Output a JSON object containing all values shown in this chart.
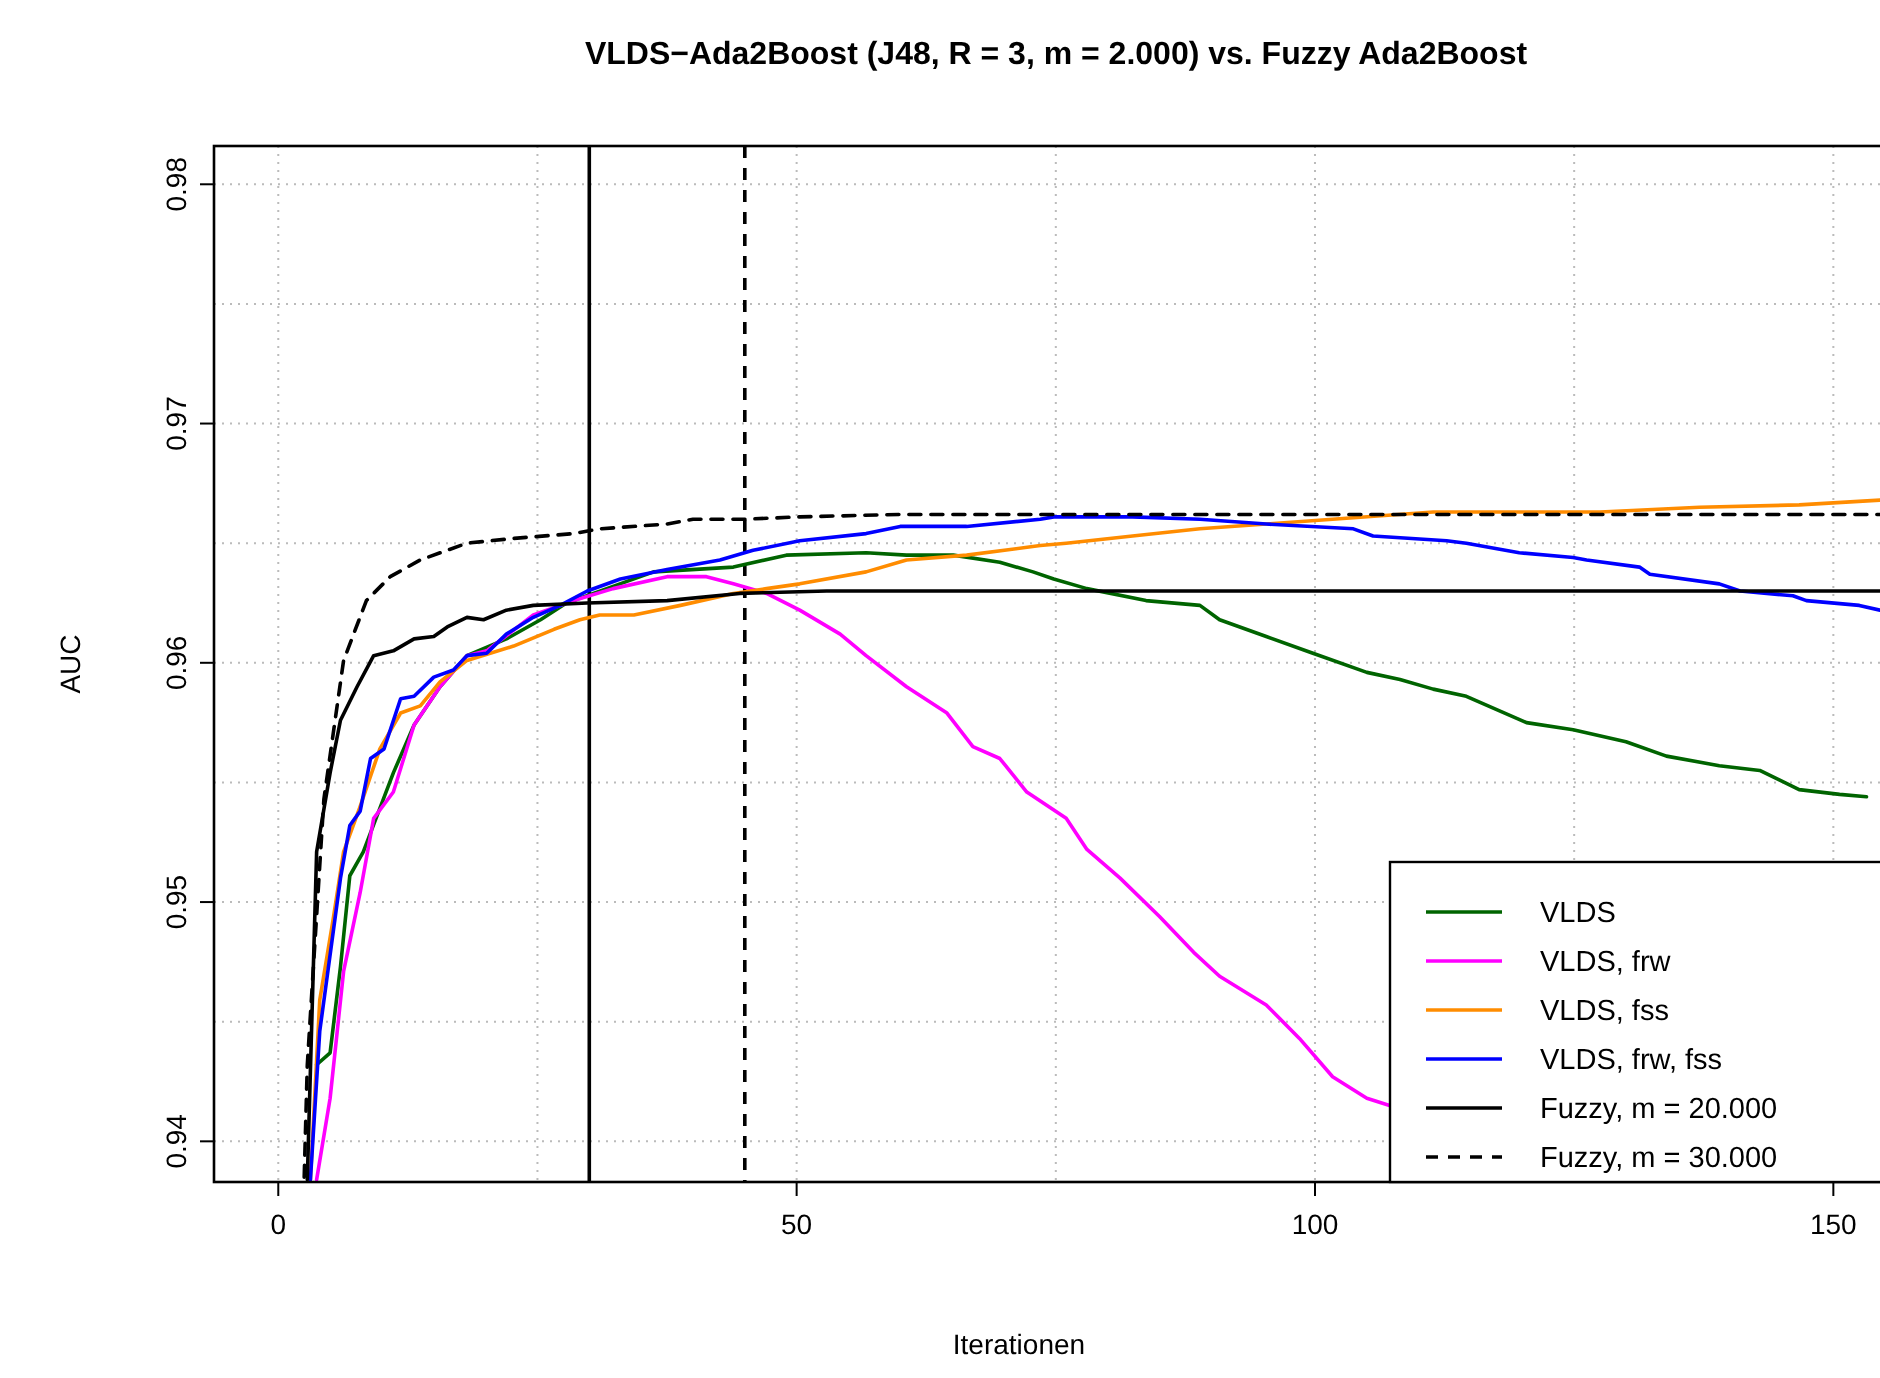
{
  "chart_data": {
    "type": "line",
    "title": "VLDS−Ada2Boost (J48, R = 3, m = 2.000) vs. Fuzzy Ada2Boost",
    "xlabel": "Iterationen",
    "ylabel": "AUC",
    "xlim": [
      -6.2,
      154.5
    ],
    "ylim": [
      0.9383,
      0.9816
    ],
    "xticks": [
      0,
      {
        "value": 25,
        "label": null
      },
      50,
      {
        "value": 75,
        "label": null
      },
      100,
      {
        "value": 125,
        "label": null
      },
      150
    ],
    "yticks": [
      {
        "value": 0.94,
        "label": "0.94"
      },
      {
        "value": 0.945,
        "label": null
      },
      {
        "value": 0.95,
        "label": "0.95"
      },
      {
        "value": 0.955,
        "label": null
      },
      {
        "value": 0.96,
        "label": "0.96"
      },
      {
        "value": 0.965,
        "label": null
      },
      {
        "value": 0.97,
        "label": "0.97"
      },
      {
        "value": 0.975,
        "label": null
      },
      {
        "value": 0.98,
        "label": "0.98"
      }
    ],
    "grid": true,
    "legend": "bottom right",
    "ref_lines": [
      {
        "axis": "x",
        "value": 30,
        "color": "#000000",
        "line_style": "solid"
      },
      {
        "axis": "x",
        "value": 45,
        "color": "#000000",
        "line_style": "dashed"
      }
    ],
    "series": [
      {
        "name": "VLDS",
        "color": "#006400",
        "line_style": "solid",
        "x": [
          3.7,
          5.0,
          6.0,
          6.9,
          8.2,
          11.1,
          13.1,
          15.6,
          18.2,
          22.0,
          25.3,
          27.8,
          30.4,
          36.2,
          43.9,
          49.0,
          56.7,
          60.6,
          65.1,
          69.6,
          72.8,
          74.8,
          78.0,
          83.7,
          88.9,
          90.8,
          95.3,
          99.8,
          105.0,
          108.2,
          111.4,
          114.6,
          120.4,
          124.9,
          130.0,
          133.9,
          139.0,
          142.9,
          146.7,
          150.6,
          153.2
        ],
        "values": [
          0.9432,
          0.9437,
          0.9473,
          0.9511,
          0.9521,
          0.9554,
          0.9574,
          0.959,
          0.9603,
          0.961,
          0.9618,
          0.9625,
          0.9629,
          0.9638,
          0.964,
          0.9645,
          0.9646,
          0.9645,
          0.9645,
          0.9642,
          0.9638,
          0.9635,
          0.9631,
          0.9626,
          0.9624,
          0.9618,
          0.9611,
          0.9604,
          0.9596,
          0.9593,
          0.9589,
          0.9586,
          0.9575,
          0.9572,
          0.9567,
          0.9561,
          0.9557,
          0.9555,
          0.9547,
          0.9545,
          0.9544
        ]
      },
      {
        "name": "VLDS, frw",
        "color": "#ff00ff",
        "line_style": "solid",
        "x": [
          3.7,
          5.0,
          6.3,
          7.9,
          9.2,
          11.1,
          13.1,
          15.6,
          18.2,
          20.1,
          24.6,
          28.5,
          32.3,
          37.5,
          41.3,
          43.9,
          47.1,
          50.3,
          54.2,
          56.7,
          60.6,
          64.5,
          67.0,
          69.6,
          72.2,
          76.0,
          78.0,
          81.2,
          85.0,
          88.3,
          90.8,
          95.3,
          98.5,
          101.7,
          105.0,
          107.2
        ],
        "values": [
          0.9384,
          0.9418,
          0.9471,
          0.9504,
          0.9535,
          0.9546,
          0.9574,
          0.959,
          0.9603,
          0.9605,
          0.962,
          0.9626,
          0.9631,
          0.9636,
          0.9636,
          0.9633,
          0.9629,
          0.9622,
          0.9612,
          0.9603,
          0.959,
          0.9579,
          0.9565,
          0.956,
          0.9546,
          0.9535,
          0.9522,
          0.951,
          0.9494,
          0.9479,
          0.9469,
          0.9457,
          0.9443,
          0.9427,
          0.9418,
          0.9415
        ]
      },
      {
        "name": "VLDS, fss",
        "color": "#ff8c00",
        "line_style": "solid",
        "x": [
          3.1,
          4.0,
          5.3,
          6.3,
          7.9,
          9.8,
          11.8,
          13.7,
          15.6,
          18.2,
          22.7,
          26.6,
          29.1,
          31.0,
          34.3,
          38.8,
          43.9,
          47.1,
          50.3,
          56.7,
          60.6,
          66.4,
          73.5,
          76.0,
          82.4,
          88.9,
          95.3,
          101.7,
          111.4,
          127.5,
          137.1,
          146.7,
          154.5
        ],
        "values": [
          0.9384,
          0.9459,
          0.9493,
          0.9521,
          0.954,
          0.9564,
          0.9579,
          0.9582,
          0.9592,
          0.9601,
          0.9607,
          0.9614,
          0.9618,
          0.962,
          0.962,
          0.9624,
          0.9629,
          0.9631,
          0.9633,
          0.9638,
          0.9643,
          0.9645,
          0.9649,
          0.965,
          0.9653,
          0.9656,
          0.9658,
          0.966,
          0.9663,
          0.9663,
          0.9665,
          0.9666,
          0.9668
        ]
      },
      {
        "name": "VLDS, frw, fss",
        "color": "#0000ff",
        "line_style": "solid",
        "x": [
          3.1,
          4.0,
          6.0,
          6.9,
          7.9,
          8.9,
          10.2,
          11.8,
          13.1,
          15.0,
          16.9,
          18.2,
          20.1,
          22.0,
          24.6,
          27.2,
          29.8,
          33.0,
          37.5,
          42.6,
          45.8,
          50.3,
          56.7,
          60.0,
          66.4,
          73.5,
          74.8,
          82.4,
          88.9,
          95.3,
          103.7,
          105.6,
          112.7,
          114.6,
          119.7,
          124.9,
          126.2,
          131.3,
          132.3,
          139.0,
          141.0,
          146.1,
          147.4,
          152.5,
          154.5
        ],
        "values": [
          0.9384,
          0.9446,
          0.951,
          0.9532,
          0.9538,
          0.956,
          0.9564,
          0.9585,
          0.9586,
          0.9594,
          0.9597,
          0.9603,
          0.9604,
          0.9612,
          0.9619,
          0.9624,
          0.963,
          0.9635,
          0.9639,
          0.9643,
          0.9647,
          0.9651,
          0.9654,
          0.9657,
          0.9657,
          0.966,
          0.9661,
          0.9661,
          0.966,
          0.9658,
          0.9656,
          0.9653,
          0.9651,
          0.965,
          0.9646,
          0.9644,
          0.9643,
          0.964,
          0.9637,
          0.9633,
          0.963,
          0.9628,
          0.9626,
          0.9624,
          0.9622
        ]
      },
      {
        "name": "Fuzzy, m = 20.000",
        "color": "#000000",
        "line_style": "solid",
        "x": [
          2.8,
          3.7,
          5.0,
          6.0,
          7.6,
          9.2,
          11.1,
          13.1,
          15.0,
          16.3,
          18.2,
          19.8,
          22.0,
          24.6,
          29.8,
          37.5,
          44.5,
          52.9,
          154.5
        ],
        "values": [
          0.9384,
          0.9521,
          0.9554,
          0.9576,
          0.959,
          0.9603,
          0.9605,
          0.961,
          0.9611,
          0.9615,
          0.9619,
          0.9618,
          0.9622,
          0.9624,
          0.9625,
          0.9626,
          0.9629,
          0.963,
          0.963
        ]
      },
      {
        "name": "Fuzzy, m = 30.000",
        "color": "#000000",
        "line_style": "dashed",
        "x": [
          2.5,
          2.8,
          4.4,
          6.3,
          8.5,
          10.8,
          13.7,
          18.2,
          22.7,
          28.5,
          31.0,
          37.5,
          40.0,
          45.0,
          50.3,
          60.0,
          154.5
        ],
        "values": [
          0.9385,
          0.9432,
          0.9543,
          0.9601,
          0.9626,
          0.9636,
          0.9643,
          0.965,
          0.9652,
          0.9654,
          0.9656,
          0.9658,
          0.966,
          0.966,
          0.9661,
          0.9662,
          0.9662
        ]
      }
    ]
  }
}
